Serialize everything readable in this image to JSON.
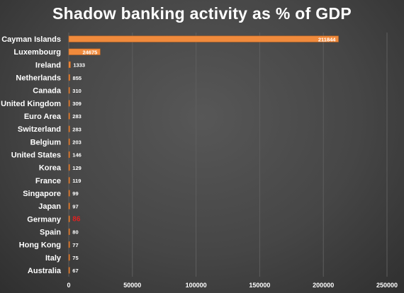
{
  "chart_data": {
    "type": "bar",
    "orientation": "horizontal",
    "title": "Shadow banking activity as % of GDP",
    "xlabel": "",
    "ylabel": "",
    "xlim": [
      0,
      250000
    ],
    "x_ticks": [
      "0",
      "50000",
      "100000",
      "150000",
      "200000",
      "250000"
    ],
    "grid": "vertical",
    "legend": "none",
    "categories": [
      "Cayman Islands",
      "Luxembourg",
      "Ireland",
      "Netherlands",
      "Canada",
      "United Kingdom",
      "Euro Area",
      "Switzerland",
      "Belgium",
      "United States",
      "Korea",
      "France",
      "Singapore",
      "Japan",
      "Germany",
      "Spain",
      "Hong Kong",
      "Italy",
      "Australia"
    ],
    "values": [
      211844,
      24675,
      1333,
      855,
      310,
      309,
      283,
      283,
      203,
      146,
      129,
      119,
      99,
      97,
      86,
      80,
      77,
      75,
      67
    ],
    "labels": [
      "211844",
      "24675",
      "1333",
      "855",
      "310",
      "309",
      "283",
      "283",
      "203",
      "146",
      "129",
      "119",
      "99",
      "97",
      "86",
      "80",
      "77",
      "75",
      "67"
    ],
    "highlight": {
      "category": "Germany",
      "label_color": "#e02020"
    },
    "colors": {
      "bar": "#f08a3c",
      "text": "#ffffff",
      "grid": "#5e5e5e",
      "background": "#4a4a4a"
    }
  }
}
